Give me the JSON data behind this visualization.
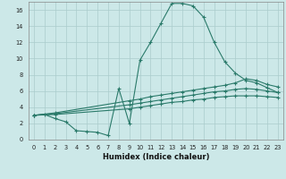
{
  "title": "",
  "xlabel": "Humidex (Indice chaleur)",
  "bg_color": "#cce8e8",
  "grid_color": "#aacccc",
  "line_color": "#2a7a6a",
  "xlim": [
    -0.5,
    23.5
  ],
  "ylim": [
    0,
    17
  ],
  "xticks": [
    0,
    1,
    2,
    3,
    4,
    5,
    6,
    7,
    8,
    9,
    10,
    11,
    12,
    13,
    14,
    15,
    16,
    17,
    18,
    19,
    20,
    21,
    22,
    23
  ],
  "yticks": [
    0,
    2,
    4,
    6,
    8,
    10,
    12,
    14,
    16
  ],
  "series1_x": [
    0,
    1,
    2,
    3,
    4,
    5,
    6,
    7,
    8,
    9,
    10,
    11,
    12,
    13,
    14,
    15,
    16,
    17,
    18,
    19,
    20,
    21,
    22,
    23
  ],
  "series1_y": [
    3.0,
    3.1,
    2.6,
    2.2,
    1.1,
    1.0,
    0.9,
    0.5,
    6.3,
    2.0,
    9.8,
    12.0,
    14.4,
    16.8,
    16.8,
    16.5,
    15.1,
    12.0,
    9.6,
    8.2,
    7.3,
    7.0,
    6.4,
    5.8
  ],
  "series2_x": [
    0,
    2,
    9,
    10,
    11,
    12,
    13,
    14,
    15,
    16,
    17,
    18,
    19,
    20,
    21,
    22,
    23
  ],
  "series2_y": [
    3.0,
    3.3,
    4.8,
    5.0,
    5.3,
    5.5,
    5.7,
    5.9,
    6.1,
    6.3,
    6.5,
    6.7,
    7.0,
    7.5,
    7.3,
    6.8,
    6.5
  ],
  "series3_x": [
    0,
    2,
    9,
    10,
    11,
    12,
    13,
    14,
    15,
    16,
    17,
    18,
    19,
    20,
    21,
    22,
    23
  ],
  "series3_y": [
    3.0,
    3.2,
    4.3,
    4.5,
    4.7,
    4.9,
    5.1,
    5.3,
    5.5,
    5.7,
    5.9,
    6.0,
    6.2,
    6.3,
    6.2,
    6.0,
    5.8
  ],
  "series4_x": [
    0,
    2,
    9,
    10,
    11,
    12,
    13,
    14,
    15,
    16,
    17,
    18,
    19,
    20,
    21,
    22,
    23
  ],
  "series4_y": [
    3.0,
    3.1,
    3.8,
    4.0,
    4.2,
    4.4,
    4.6,
    4.7,
    4.9,
    5.0,
    5.2,
    5.3,
    5.4,
    5.4,
    5.4,
    5.3,
    5.2
  ]
}
